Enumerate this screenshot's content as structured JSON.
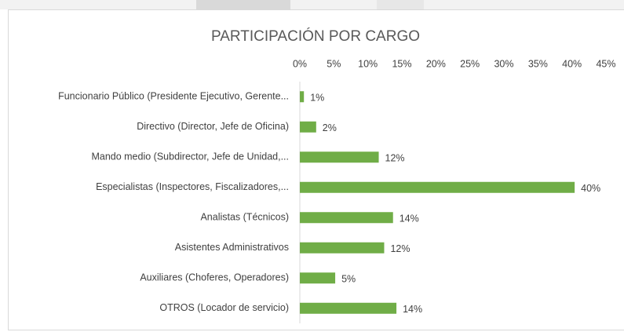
{
  "chart_data": {
    "type": "bar",
    "orientation": "horizontal",
    "title": "PARTICIPACIÓN POR CARGO",
    "categories": [
      "Funcionario Público (Presidente Ejecutivo, Gerente...",
      "Directivo (Director, Jefe de Oficina)",
      "Mando medio (Subdirector, Jefe de Unidad,...",
      "Especialistas (Inspectores, Fiscalizadores,...",
      "Analistas (Técnicos)",
      "Asistentes Administrativos",
      "Auxiliares (Choferes, Operadores)",
      "OTROS (Locador de servicio)"
    ],
    "values": [
      0.6,
      2.4,
      11.6,
      40.4,
      13.7,
      12.4,
      5.2,
      14.2
    ],
    "value_labels": [
      "1%",
      "2%",
      "12%",
      "40%",
      "14%",
      "12%",
      "5%",
      "14%"
    ],
    "color": "#70ad47",
    "xlim": [
      0,
      45
    ],
    "xticks": [
      {
        "value": 0,
        "label": "0%"
      },
      {
        "value": 5,
        "label": "5%"
      },
      {
        "value": 10,
        "label": "10%"
      },
      {
        "value": 15,
        "label": "15%"
      },
      {
        "value": 20,
        "label": "20%"
      },
      {
        "value": 25,
        "label": "25%"
      },
      {
        "value": 30,
        "label": "30%"
      },
      {
        "value": 35,
        "label": "35%"
      },
      {
        "value": 40,
        "label": "40%"
      },
      {
        "value": 45,
        "label": "45%"
      }
    ],
    "grid": false
  }
}
